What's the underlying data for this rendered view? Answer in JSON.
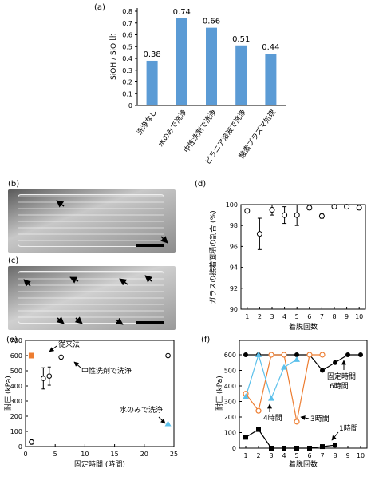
{
  "panel_labels": {
    "a": "(a)",
    "b": "(b)",
    "c": "(c)",
    "d": "(d)",
    "e": "(e)",
    "f": "(f)"
  },
  "colors": {
    "bar": "#5b9bd5",
    "orange": "#ed7d31",
    "cyan": "#5bc0eb",
    "black": "#000000"
  },
  "chart_data": [
    {
      "id": "a",
      "type": "bar",
      "categories": [
        "洗浄なし",
        "水のみで洗浄",
        "中性洗剤で洗浄",
        "ピラニア溶液で洗浄",
        "酸素プラズマ処理"
      ],
      "values": [
        0.38,
        0.74,
        0.66,
        0.51,
        0.44
      ],
      "value_labels": [
        "0.38",
        "0.74",
        "0.66",
        "0.51",
        "0.44"
      ],
      "ylabel": "SiOH / SiO 比",
      "ylim": [
        0,
        0.8
      ],
      "yticks": [
        "0",
        "0.1",
        "0.2",
        "0.3",
        "0.4",
        "0.5",
        "0.6",
        "0.7",
        "0.8"
      ],
      "grid": false
    },
    {
      "id": "d",
      "type": "scatter",
      "xlabel": "着脱回数",
      "ylabel": "ガラスの接着面積の割合 (%)",
      "xlim": [
        0.5,
        10.5
      ],
      "ylim": [
        90,
        100
      ],
      "xticks": [
        "1",
        "2",
        "3",
        "4",
        "5",
        "6",
        "7",
        "8",
        "9",
        "10"
      ],
      "yticks": [
        "90",
        "92",
        "94",
        "96",
        "98",
        "100"
      ],
      "series": [
        {
          "x": [
            1,
            2,
            3,
            4,
            5,
            6,
            7,
            8,
            9,
            10
          ],
          "y": [
            99.4,
            97.2,
            99.5,
            99.0,
            99.0,
            99.7,
            98.9,
            99.8,
            99.8,
            99.7
          ],
          "err": [
            0.2,
            1.5,
            0.5,
            0.8,
            1.0,
            0.2,
            0.2,
            0.1,
            0.2,
            0.2
          ]
        }
      ],
      "grid": false
    },
    {
      "id": "e",
      "type": "scatter",
      "xlabel": "固定時間 (時間)",
      "ylabel": "耐圧 (kPa)",
      "xlim": [
        0,
        25
      ],
      "ylim": [
        0,
        700
      ],
      "xticks": [
        "0",
        "5",
        "10",
        "15",
        "20",
        "25"
      ],
      "yticks": [
        "0",
        "100",
        "200",
        "300",
        "400",
        "500",
        "600",
        "700"
      ],
      "series": [
        {
          "marker": "open-circle",
          "x": [
            1,
            3,
            4,
            6,
            24
          ],
          "y": [
            30,
            450,
            465,
            590,
            600
          ],
          "err": [
            15,
            70,
            60,
            10,
            0
          ]
        },
        {
          "marker": "orange-square",
          "x": [
            1
          ],
          "y": [
            600
          ],
          "err": [
            0
          ]
        },
        {
          "marker": "cyan-triangle",
          "x": [
            24
          ],
          "y": [
            150
          ],
          "err": [
            0
          ]
        }
      ],
      "annotations": [
        "従来法",
        "中性洗剤で洗浄",
        "水のみで洗浄"
      ],
      "grid": false
    },
    {
      "id": "f",
      "type": "line",
      "xlabel": "着脱回数",
      "ylabel": "耐圧 (kPa)",
      "xlim": [
        0.5,
        10.5
      ],
      "ylim": [
        0,
        600
      ],
      "xticks": [
        "1",
        "2",
        "3",
        "4",
        "5",
        "6",
        "7",
        "8",
        "9",
        "10"
      ],
      "yticks": [
        "0",
        "100",
        "200",
        "300",
        "400",
        "500",
        "600"
      ],
      "series": [
        {
          "marker": "filled-circle",
          "x": [
            1,
            2,
            3,
            4,
            5,
            6,
            7,
            8,
            9,
            10
          ],
          "y": [
            600,
            600,
            600,
            600,
            600,
            600,
            500,
            550,
            600,
            600
          ]
        },
        {
          "marker": "orange-open-circle",
          "x": [
            1,
            2,
            3,
            4,
            5,
            6,
            7
          ],
          "y": [
            350,
            240,
            600,
            600,
            170,
            600,
            600
          ]
        },
        {
          "marker": "cyan-triangle",
          "x": [
            1,
            2,
            3,
            4,
            5
          ],
          "y": [
            330,
            600,
            320,
            520,
            570
          ]
        },
        {
          "marker": "filled-square",
          "x": [
            1,
            2,
            3,
            4,
            5,
            6,
            7,
            8
          ],
          "y": [
            70,
            120,
            0,
            0,
            0,
            0,
            10,
            20
          ]
        }
      ],
      "annotations": [
        "固定時間",
        "6時間",
        "4時間",
        "3時間",
        "1時間"
      ],
      "grid": false
    }
  ]
}
